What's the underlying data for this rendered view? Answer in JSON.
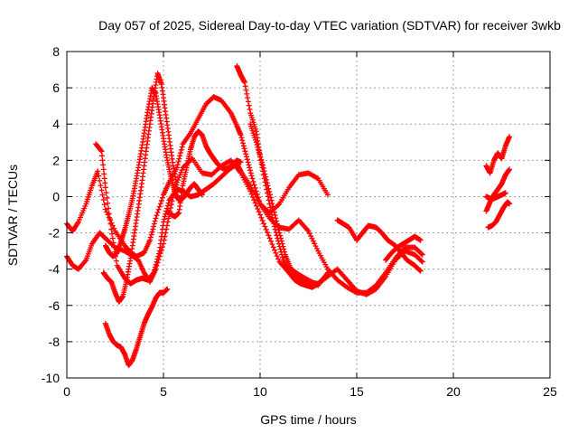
{
  "chart_data": {
    "type": "scatter",
    "title": "Day 057 of 2025, Sidereal Day-to-day VTEC variation (SDTVAR) for receiver 3wkb",
    "xlabel": "GPS time / hours",
    "ylabel": "SDTVAR / TECUs",
    "xlim": [
      0,
      25
    ],
    "ylim": [
      -10,
      8
    ],
    "xticks": [
      "0",
      "5",
      "10",
      "15",
      "20",
      "25"
    ],
    "yticks": [
      "-10",
      "-8",
      "-6",
      "-4",
      "-2",
      "0",
      "2",
      "4",
      "6",
      "8"
    ],
    "grid": true,
    "marker": "+",
    "color": "#ff0000",
    "series": [
      {
        "x": [
          0.0,
          0.3,
          0.6,
          1.0,
          1.3,
          1.7,
          2.0,
          2.5,
          3.0,
          3.3,
          3.7,
          4.0,
          4.3,
          4.6,
          5.0,
          5.3,
          5.6,
          6.0,
          6.5,
          7.0,
          7.5,
          8.0,
          8.5,
          9.0,
          9.5,
          10.0,
          10.5,
          11.0,
          11.5,
          12.0,
          12.5,
          13.0,
          13.5,
          14.0,
          14.5,
          15.0,
          15.5,
          16.0,
          16.5,
          17.0,
          17.5,
          18.0,
          18.4
        ],
        "y": [
          -3.3,
          -3.8,
          -4.0,
          -3.5,
          -2.6,
          -2.0,
          -2.3,
          -2.8,
          -3.0,
          -3.2,
          -3.5,
          -4.2,
          -4.7,
          -4.0,
          -2.6,
          -1.0,
          0.5,
          1.6,
          2.1,
          1.3,
          1.2,
          1.7,
          2.0,
          1.3,
          0.3,
          -1.0,
          -2.3,
          -3.6,
          -4.2,
          -4.5,
          -4.7,
          -4.8,
          -4.4,
          -4.0,
          -4.6,
          -5.2,
          -5.4,
          -5.1,
          -4.4,
          -3.5,
          -3.0,
          -3.2,
          -3.6
        ]
      },
      {
        "x": [
          0.0,
          0.3,
          0.6,
          1.0,
          1.3,
          1.6,
          2.0,
          2.5,
          3.0,
          3.3,
          3.6,
          4.0,
          4.3,
          4.6,
          5.0,
          5.3,
          5.7,
          6.0,
          6.4,
          6.8,
          7.2,
          7.6,
          8.0,
          8.5,
          8.8,
          9.0,
          9.3,
          9.6,
          10.0,
          10.5,
          11.0,
          11.5,
          12.0,
          12.5,
          13.0,
          13.5
        ],
        "y": [
          -1.5,
          -1.9,
          -1.4,
          -0.4,
          0.6,
          1.4,
          -0.7,
          -1.9,
          -2.7,
          -3.1,
          -3.3,
          -3.1,
          -2.4,
          -1.2,
          0.1,
          0.8,
          1.6,
          2.9,
          3.5,
          4.3,
          5.1,
          5.5,
          5.3,
          4.6,
          3.9,
          3.4,
          2.2,
          1.0,
          -0.4,
          -0.9,
          -0.4,
          0.5,
          1.2,
          1.3,
          1.0,
          0.1
        ]
      },
      {
        "x": [
          1.5,
          1.8,
          2.0,
          2.3,
          2.6,
          3.0,
          3.3,
          3.6,
          3.9,
          4.2,
          4.5,
          4.8,
          5.0,
          5.3,
          5.7,
          6.0,
          6.4,
          6.8,
          7.2,
          7.6,
          8.0,
          8.4,
          8.8,
          9.0,
          9.5,
          10.0,
          10.5,
          11.0,
          11.5,
          12.0,
          12.5,
          13.0,
          13.5,
          14.0,
          14.5,
          15.0,
          15.5,
          16.0,
          16.5,
          17.0,
          17.5,
          18.0,
          18.4
        ],
        "y": [
          2.9,
          2.5,
          0.5,
          -1.8,
          -3.8,
          -4.5,
          -4.8,
          -4.6,
          -4.5,
          -4.6,
          -4.2,
          -3.0,
          -1.4,
          -0.2,
          0.4,
          0.3,
          0.0,
          0.1,
          0.4,
          0.7,
          1.1,
          1.5,
          1.8,
          1.4,
          0.6,
          -0.4,
          -1.2,
          -1.7,
          -1.8,
          -1.3,
          -1.9,
          -3.0,
          -4.0,
          -4.6,
          -5.0,
          -5.3,
          -5.3,
          -4.9,
          -4.2,
          -3.4,
          -2.8,
          -2.8,
          -3.2
        ]
      },
      {
        "x": [
          2.0,
          2.2,
          2.4,
          2.6,
          2.8,
          3.0,
          3.2,
          3.4,
          3.6,
          3.8,
          4.0,
          4.2,
          4.4,
          4.6,
          4.8,
          5.0,
          5.2,
          5.4,
          5.6,
          5.8,
          6.0,
          6.2,
          6.4,
          6.6,
          6.8,
          7.0
        ],
        "y": [
          -2.7,
          -3.1,
          -3.3,
          -3.1,
          -2.5,
          -1.8,
          -1.0,
          -0.1,
          1.0,
          2.2,
          3.5,
          4.8,
          6.0,
          5.7,
          4.5,
          3.2,
          2.0,
          1.0,
          0.2,
          -0.2,
          -0.1,
          0.2,
          0.5,
          0.7,
          0.4,
          0.1
        ]
      },
      {
        "x": [
          1.9,
          2.1,
          2.3,
          2.5,
          2.7,
          2.9,
          3.1,
          3.3,
          3.5,
          3.7,
          3.9,
          4.1,
          4.3,
          4.5,
          4.7,
          4.9,
          5.1,
          5.3,
          5.5,
          5.7
        ],
        "y": [
          -4.2,
          -4.5,
          -4.7,
          -5.3,
          -5.8,
          -5.5,
          -4.6,
          -3.4,
          -2.0,
          -0.6,
          0.9,
          2.5,
          4.0,
          5.5,
          6.8,
          6.2,
          4.7,
          3.2,
          1.7,
          0.5
        ]
      },
      {
        "x": [
          2.0,
          2.2,
          2.4,
          2.6,
          2.8,
          3.0,
          3.2,
          3.4,
          3.6,
          3.8,
          4.0,
          4.2,
          4.4,
          4.6,
          4.8,
          5.0,
          5.2
        ],
        "y": [
          -7.0,
          -7.6,
          -8.0,
          -8.2,
          -8.3,
          -8.7,
          -9.3,
          -9.0,
          -8.4,
          -7.7,
          -7.0,
          -6.5,
          -6.1,
          -5.6,
          -5.3,
          -5.3,
          -5.1
        ]
      },
      {
        "x": [
          5.2,
          5.4,
          5.6,
          5.8,
          6.0,
          6.2,
          6.4,
          6.6,
          6.8,
          7.0,
          7.2,
          7.4,
          7.6,
          7.8,
          8.0,
          8.2,
          8.4,
          8.6,
          8.8,
          9.0
        ],
        "y": [
          -0.8,
          -1.0,
          -1.1,
          -0.9,
          0.6,
          1.6,
          2.6,
          3.3,
          3.6,
          3.4,
          2.8,
          2.4,
          2.1,
          1.8,
          1.6,
          1.5,
          1.6,
          1.8,
          2.0,
          1.9
        ]
      },
      {
        "x": [
          8.8,
          9.0,
          9.2,
          9.5,
          9.8,
          10.0,
          10.3,
          10.6,
          10.9,
          11.2,
          11.5,
          11.8,
          12.1,
          12.4,
          12.7,
          13.0,
          13.3
        ],
        "y": [
          7.2,
          6.7,
          6.3,
          4.6,
          3.6,
          2.2,
          0.6,
          -1.0,
          -2.3,
          -3.5,
          -4.2,
          -4.6,
          -4.8,
          -4.9,
          -5.0,
          -4.8,
          -4.5
        ]
      },
      {
        "x": [
          9.5,
          9.8,
          10.1,
          10.4,
          10.7,
          11.0,
          11.3,
          11.6,
          12.0,
          12.5,
          13.0,
          13.5
        ],
        "y": [
          4.0,
          3.0,
          1.9,
          0.6,
          -0.7,
          -2.0,
          -3.2,
          -4.0,
          -4.3,
          -4.6,
          -4.9,
          -4.2
        ]
      },
      {
        "x": [
          14.0,
          14.3,
          14.6,
          15.0,
          15.3,
          15.6,
          16.0,
          16.3,
          16.6,
          17.0,
          17.3,
          17.6,
          18.0,
          18.3
        ],
        "y": [
          -1.3,
          -1.5,
          -1.7,
          -2.4,
          -2.0,
          -1.6,
          -1.7,
          -2.0,
          -2.4,
          -2.7,
          -3.1,
          -3.5,
          -3.8,
          -4.1
        ]
      },
      {
        "x": [
          16.5,
          16.8,
          17.1,
          17.4,
          17.7,
          18.0,
          18.3
        ],
        "y": [
          -3.5,
          -3.1,
          -2.8,
          -2.6,
          -2.4,
          -2.2,
          -2.4
        ]
      },
      {
        "x": [
          21.7,
          21.9,
          22.1,
          22.3,
          22.5,
          22.7,
          22.9
        ],
        "y": [
          1.7,
          1.3,
          2.0,
          2.4,
          2.1,
          2.8,
          3.3
        ]
      },
      {
        "x": [
          21.7,
          21.9,
          22.1,
          22.3,
          22.5,
          22.7,
          22.9
        ],
        "y": [
          -0.8,
          -0.3,
          0.1,
          0.4,
          0.7,
          1.2,
          1.5
        ]
      },
      {
        "x": [
          21.8,
          22.0,
          22.2,
          22.4,
          22.6,
          22.8,
          22.9
        ],
        "y": [
          -1.7,
          -1.6,
          -1.4,
          -1.0,
          -0.6,
          -0.3,
          -0.4
        ]
      },
      {
        "x": [
          21.7,
          21.9,
          22.1,
          22.3,
          22.5,
          22.7
        ],
        "y": [
          0.0,
          -0.1,
          -0.1,
          0.0,
          0.1,
          0.2
        ]
      }
    ]
  }
}
